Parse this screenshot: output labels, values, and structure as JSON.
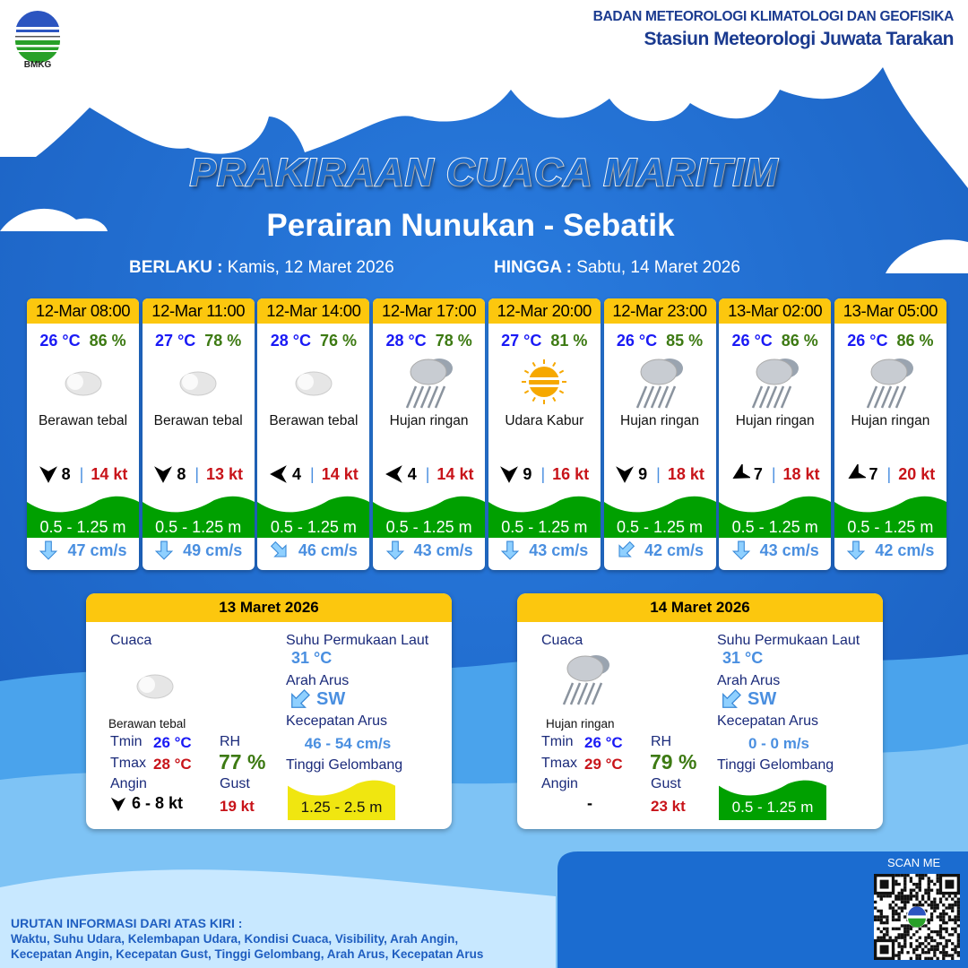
{
  "header": {
    "org": "BADAN METEOROLOGI KLIMATOLOGI DAN GEOFISIKA",
    "station": "Stasiun Meteorologi Juwata Tarakan",
    "logo_text": "BMKG"
  },
  "title": "PRAKIRAAN CUACA MARITIM",
  "area": "Perairan Nunukan - Sebatik",
  "validity": {
    "from_label": "BERLAKU :",
    "from": "Kamis, 12 Maret 2026",
    "to_label": "HINGGA :",
    "to": "Sabtu, 14 Maret 2026"
  },
  "colors": {
    "header_yellow": "#fcc70e",
    "wave_green": "#00a000",
    "wave_yellow": "#f0e610",
    "bg_blue": "#1f6fd0"
  },
  "forecasts": [
    {
      "time": "12-Mar 08:00",
      "temp": "26 °C",
      "rh": "86 %",
      "icon": "thick-cloud-icon",
      "condition": "Berawan tebal",
      "wind_deg": 180,
      "wind": "8",
      "gust": "14 kt",
      "wave": "0.5 - 1.25 m",
      "current_deg": 180,
      "current": "47 cm/s"
    },
    {
      "time": "12-Mar 11:00",
      "temp": "27 °C",
      "rh": "78 %",
      "icon": "thick-cloud-icon",
      "condition": "Berawan tebal",
      "wind_deg": 180,
      "wind": "8",
      "gust": "13 kt",
      "wave": "0.5 - 1.25 m",
      "current_deg": 180,
      "current": "49 cm/s"
    },
    {
      "time": "12-Mar 14:00",
      "temp": "28 °C",
      "rh": "76 %",
      "icon": "thick-cloud-icon",
      "condition": "Berawan tebal",
      "wind_deg": 270,
      "wind": "4",
      "gust": "14 kt",
      "wave": "0.5 - 1.25 m",
      "current_deg": 135,
      "current": "46 cm/s"
    },
    {
      "time": "12-Mar 17:00",
      "temp": "28 °C",
      "rh": "78 %",
      "icon": "light-rain-icon",
      "condition": "Hujan ringan",
      "wind_deg": 270,
      "wind": "4",
      "gust": "14 kt",
      "wave": "0.5 - 1.25 m",
      "current_deg": 180,
      "current": "43 cm/s"
    },
    {
      "time": "12-Mar 20:00",
      "temp": "27 °C",
      "rh": "81 %",
      "icon": "haze-icon",
      "condition": "Udara Kabur",
      "wind_deg": 180,
      "wind": "9",
      "gust": "16 kt",
      "wave": "0.5 - 1.25 m",
      "current_deg": 180,
      "current": "43 cm/s"
    },
    {
      "time": "12-Mar 23:00",
      "temp": "26 °C",
      "rh": "85 %",
      "icon": "light-rain-icon",
      "condition": "Hujan ringan",
      "wind_deg": 180,
      "wind": "9",
      "gust": "18 kt",
      "wave": "0.5 - 1.25 m",
      "current_deg": 225,
      "current": "42 cm/s"
    },
    {
      "time": "13-Mar 02:00",
      "temp": "26 °C",
      "rh": "86 %",
      "icon": "light-rain-icon",
      "condition": "Hujan ringan",
      "wind_deg": 240,
      "wind": "7",
      "gust": "18 kt",
      "wave": "0.5 - 1.25 m",
      "current_deg": 180,
      "current": "43 cm/s"
    },
    {
      "time": "13-Mar 05:00",
      "temp": "26 °C",
      "rh": "86 %",
      "icon": "light-rain-icon",
      "condition": "Hujan ringan",
      "wind_deg": 240,
      "wind": "7",
      "gust": "20 kt",
      "wave": "0.5 - 1.25 m",
      "current_deg": 180,
      "current": "42 cm/s"
    }
  ],
  "daily": [
    {
      "date": "13 Maret 2026",
      "weather_label": "Cuaca",
      "icon": "thick-cloud-icon",
      "condition": "Berawan tebal",
      "tmin_label": "Tmin",
      "tmin": "26 °C",
      "tmax_label": "Tmax",
      "tmax": "28 °C",
      "rh_label": "RH",
      "rh": "77 %",
      "wind_label": "Angin",
      "wind": "6  - 8 kt",
      "wind_deg": 180,
      "gust_label": "Gust",
      "gust": "19 kt",
      "sst_label": "Suhu Permukaan Laut",
      "sst": "31 °C",
      "cur_dir_label": "Arah Arus",
      "cur_dir": "SW",
      "cur_speed_label": "Kecepatan Arus",
      "cur_speed": "46 - 54 cm/s",
      "wave_label": "Tinggi Gelombang",
      "wave": "1.25 - 2.5 m",
      "wave_color": "#f0e610",
      "wave_text_color": "#111"
    },
    {
      "date": "14 Maret 2026",
      "weather_label": "Cuaca",
      "icon": "light-rain-icon",
      "condition": "Hujan ringan",
      "tmin_label": "Tmin",
      "tmin": "26 °C",
      "tmax_label": "Tmax",
      "tmax": "29 °C",
      "rh_label": "RH",
      "rh": "79 %",
      "wind_label": "Angin",
      "wind": "-",
      "wind_deg": null,
      "gust_label": "Gust",
      "gust": "23 kt",
      "sst_label": "Suhu Permukaan Laut",
      "sst": "31 °C",
      "cur_dir_label": "Arah Arus",
      "cur_dir": "SW",
      "cur_speed_label": "Kecepatan Arus",
      "cur_speed": "0 - 0 m/s",
      "wave_label": "Tinggi Gelombang",
      "wave": "0.5 - 1.25 m",
      "wave_color": "#00a000",
      "wave_text_color": "#fff"
    }
  ],
  "footer": {
    "title": "URUTAN INFORMASI DARI ATAS KIRI :",
    "line1": "Waktu, Suhu Udara, Kelembapan Udara, Kondisi Cuaca, Visibility, Arah Angin,",
    "line2": "Kecepatan Angin, Kecepatan Gust, Tinggi Gelombang, Arah Arus, Kecepatan Arus",
    "scan": "SCAN ME"
  }
}
